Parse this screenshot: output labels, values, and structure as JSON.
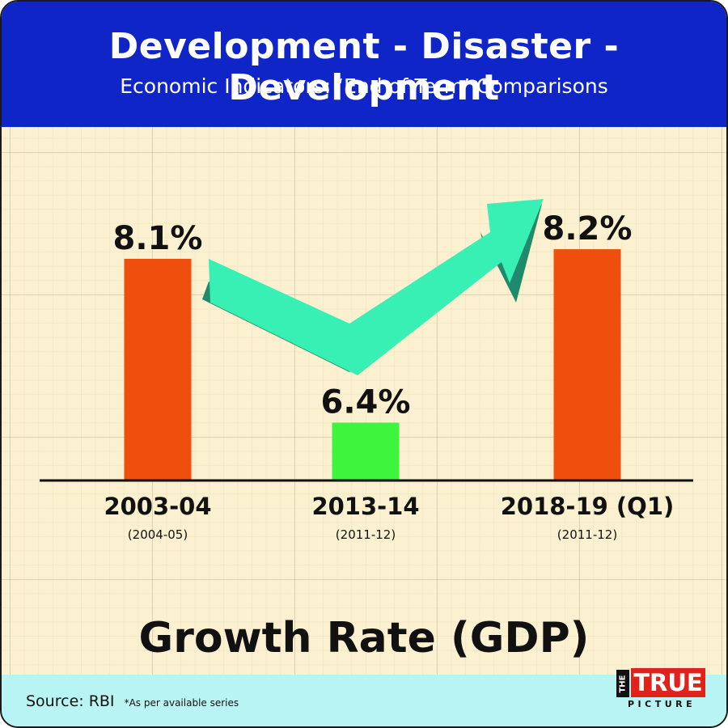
{
  "header": {
    "title": "Development - Disaster - Development",
    "subtitle": "Economic Indicators: ‘End of  Term’ Comparisons"
  },
  "chart_data": {
    "type": "bar",
    "title": "Development - Disaster - Development",
    "subtitle": "Economic Indicators: ‘End of  Term’ Comparisons",
    "xlabel": "",
    "ylabel": "",
    "axis_title": "Growth Rate (GDP)",
    "categories": [
      "2003-04",
      "2013-14",
      "2018-19 (Q1)"
    ],
    "sublabels": [
      "(2004-05)",
      "(2011-12)",
      "(2011-12)"
    ],
    "values": [
      8.1,
      6.4,
      8.2
    ],
    "value_labels": [
      "8.1%",
      "6.4%",
      "8.2%"
    ],
    "bar_colors": [
      "#ef4f0c",
      "#3cf53c",
      "#ef4f0c"
    ],
    "ylim": [
      5.8,
      8.6
    ],
    "grid": true,
    "legend": "none",
    "annotation": "up-arrow"
  },
  "colors": {
    "header_bg": "#0f25c8",
    "paper_bg": "#fbf0cf",
    "footer_bg": "#b8f4f4",
    "arrow_face": "#38f0b4",
    "arrow_side": "#1f8a6c"
  },
  "footer": {
    "source": "Source: RBI",
    "note": "*As per available series"
  },
  "logo": {
    "the": "THE",
    "true": "TRUE",
    "picture": "PICTURE"
  }
}
